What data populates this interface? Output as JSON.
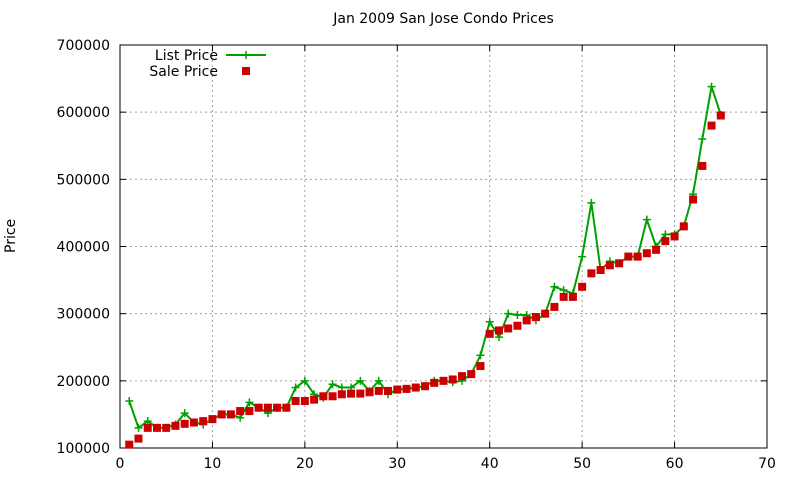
{
  "chart_data": {
    "type": "line",
    "title": "Jan 2009 San Jose Condo Prices",
    "xlabel": "",
    "ylabel": "Price",
    "xlim": [
      0,
      70
    ],
    "ylim": [
      100000,
      700000
    ],
    "x_ticks": [
      0,
      10,
      20,
      30,
      40,
      50,
      60,
      70
    ],
    "y_ticks": [
      100000,
      200000,
      300000,
      400000,
      500000,
      600000,
      700000
    ],
    "grid": true,
    "legend_position": "top-left",
    "x": [
      1,
      2,
      3,
      4,
      5,
      6,
      7,
      8,
      9,
      10,
      11,
      12,
      13,
      14,
      15,
      16,
      17,
      18,
      19,
      20,
      21,
      22,
      23,
      24,
      25,
      26,
      27,
      28,
      29,
      30,
      31,
      32,
      33,
      34,
      35,
      36,
      37,
      38,
      39,
      40,
      41,
      42,
      43,
      44,
      45,
      46,
      47,
      48,
      49,
      50,
      51,
      52,
      53,
      54,
      55,
      56,
      57,
      58,
      59,
      60,
      61,
      62,
      63,
      64,
      65
    ],
    "series": [
      {
        "name": "List Price",
        "style": "line+cross",
        "color": "#00a000",
        "values": [
          170000,
          130000,
          140000,
          130000,
          130000,
          135000,
          152000,
          138000,
          135000,
          143000,
          150000,
          150000,
          145000,
          168000,
          160000,
          152000,
          160000,
          160000,
          190000,
          200000,
          180000,
          175000,
          195000,
          190000,
          190000,
          200000,
          185000,
          200000,
          180000,
          187000,
          188000,
          190000,
          192000,
          200000,
          200000,
          198000,
          200000,
          210000,
          238000,
          288000,
          265000,
          300000,
          298000,
          298000,
          290000,
          300000,
          340000,
          335000,
          330000,
          385000,
          465000,
          365000,
          378000,
          375000,
          385000,
          385000,
          440000,
          400000,
          418000,
          418000,
          430000,
          478000,
          560000,
          638000,
          596000
        ]
      },
      {
        "name": "Sale Price",
        "style": "square-points",
        "color": "#cc0000",
        "values": [
          105000,
          114000,
          130000,
          130000,
          130000,
          133000,
          136000,
          138000,
          140000,
          143000,
          150000,
          150000,
          155000,
          155000,
          160000,
          160000,
          160000,
          160000,
          170000,
          170000,
          172000,
          177000,
          177000,
          180000,
          181000,
          181000,
          183000,
          185000,
          185000,
          187000,
          188000,
          190000,
          192000,
          197000,
          200000,
          202000,
          207000,
          210000,
          222000,
          270000,
          275000,
          278000,
          282000,
          290000,
          295000,
          300000,
          310000,
          325000,
          325000,
          340000,
          360000,
          365000,
          372000,
          375000,
          385000,
          385000,
          390000,
          395000,
          408000,
          415000,
          430000,
          470000,
          520000,
          580000,
          595000
        ]
      }
    ]
  }
}
